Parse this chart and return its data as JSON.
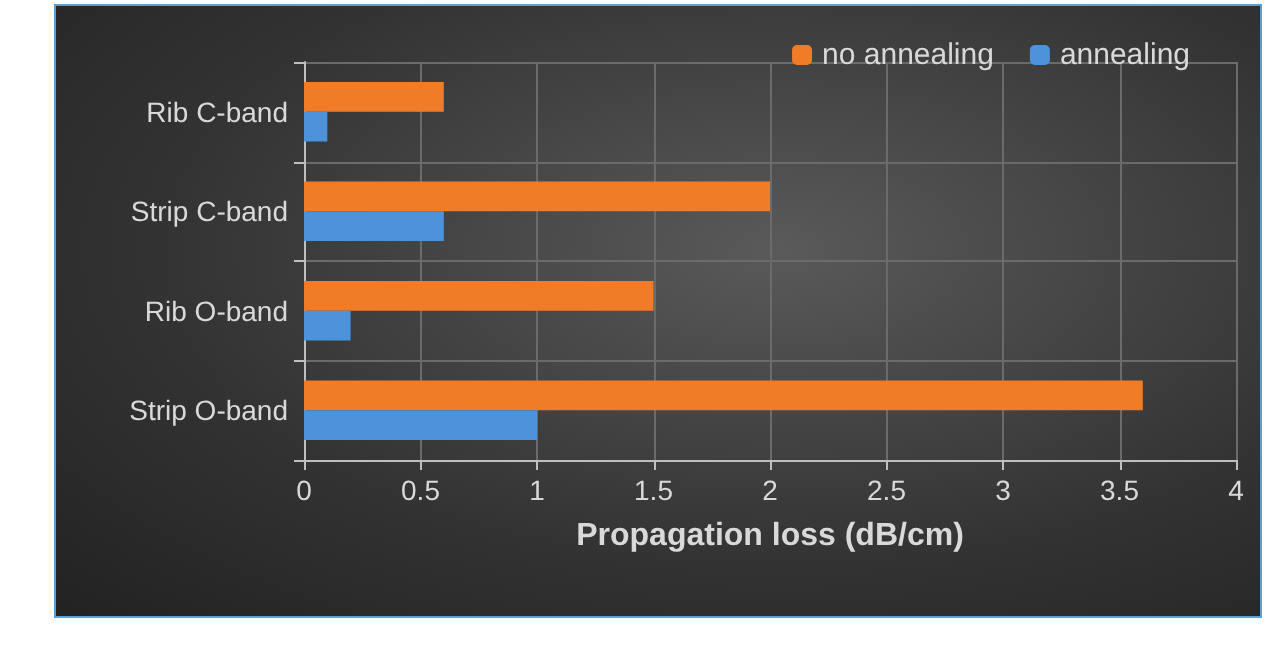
{
  "chart_data": {
    "type": "bar",
    "orientation": "horizontal",
    "xlabel": "Propagation loss (dB/cm)",
    "categories": [
      "Rib C-band",
      "Strip C-band",
      "Rib O-band",
      "Strip O-band"
    ],
    "series": [
      {
        "name": "no annealing",
        "color": "#f07c28",
        "values": [
          0.6,
          2.0,
          1.5,
          3.6
        ]
      },
      {
        "name": "annealing",
        "color": "#4c93dc",
        "values": [
          0.1,
          0.6,
          0.2,
          1.0
        ]
      }
    ],
    "xlim": [
      0,
      4
    ],
    "xticks": [
      0,
      0.5,
      1,
      1.5,
      2,
      2.5,
      3,
      3.5,
      4
    ],
    "grid": true,
    "legend": "top right"
  }
}
